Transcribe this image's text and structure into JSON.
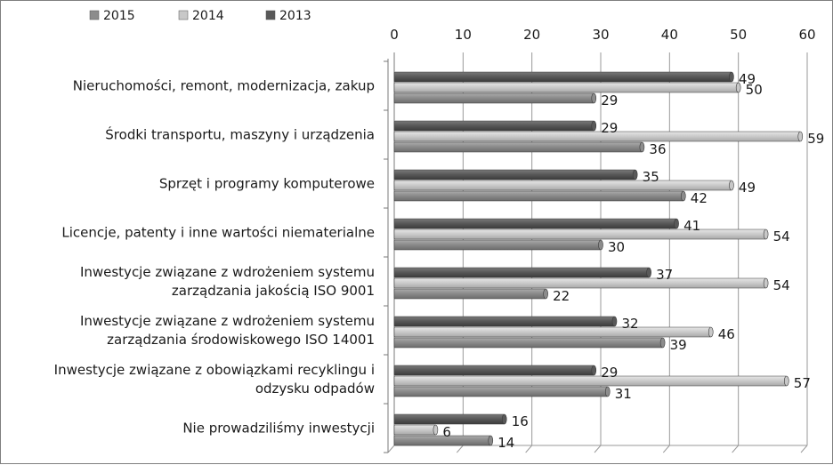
{
  "chart_data": {
    "type": "bar",
    "orientation": "horizontal",
    "mirrored": true,
    "title": "",
    "xlabel": "",
    "ylabel": "",
    "xlim": [
      0,
      60
    ],
    "ticks": [
      0,
      10,
      20,
      30,
      40,
      50,
      60
    ],
    "grid": true,
    "legend_position": "top",
    "categories": [
      [
        "Nieruchomości, remont, modernizacja, zakup"
      ],
      [
        "Środki transportu, maszyny i urządzenia"
      ],
      [
        "Sprzęt i programy komputerowe"
      ],
      [
        "Licencje, patenty i inne wartości niematerialne"
      ],
      [
        "Inwestycje związane z wdrożeniem systemu",
        "zarządzania jakością ISO 9001"
      ],
      [
        "Inwestycje związane z wdrożeniem systemu",
        "zarządzania środowiskowego ISO 14001"
      ],
      [
        "Inwestycje związane z obowiązkami recyklingu i",
        "odzysku odpadów"
      ],
      [
        "Nie prowadziliśmy inwestycji"
      ]
    ],
    "series": [
      {
        "name": "2013",
        "color": "#595959",
        "values": [
          49,
          29,
          35,
          41,
          37,
          32,
          29,
          16
        ]
      },
      {
        "name": "2014",
        "color": "#c8c8c8",
        "values": [
          50,
          59,
          49,
          54,
          54,
          46,
          57,
          6
        ]
      },
      {
        "name": "2015",
        "color": "#8c8c8c",
        "values": [
          29,
          36,
          42,
          30,
          22,
          39,
          31,
          14
        ]
      }
    ],
    "legend": [
      {
        "name": "2015",
        "color": "#8c8c8c"
      },
      {
        "name": "2014",
        "color": "#c8c8c8"
      },
      {
        "name": "2013",
        "color": "#595959"
      }
    ]
  }
}
